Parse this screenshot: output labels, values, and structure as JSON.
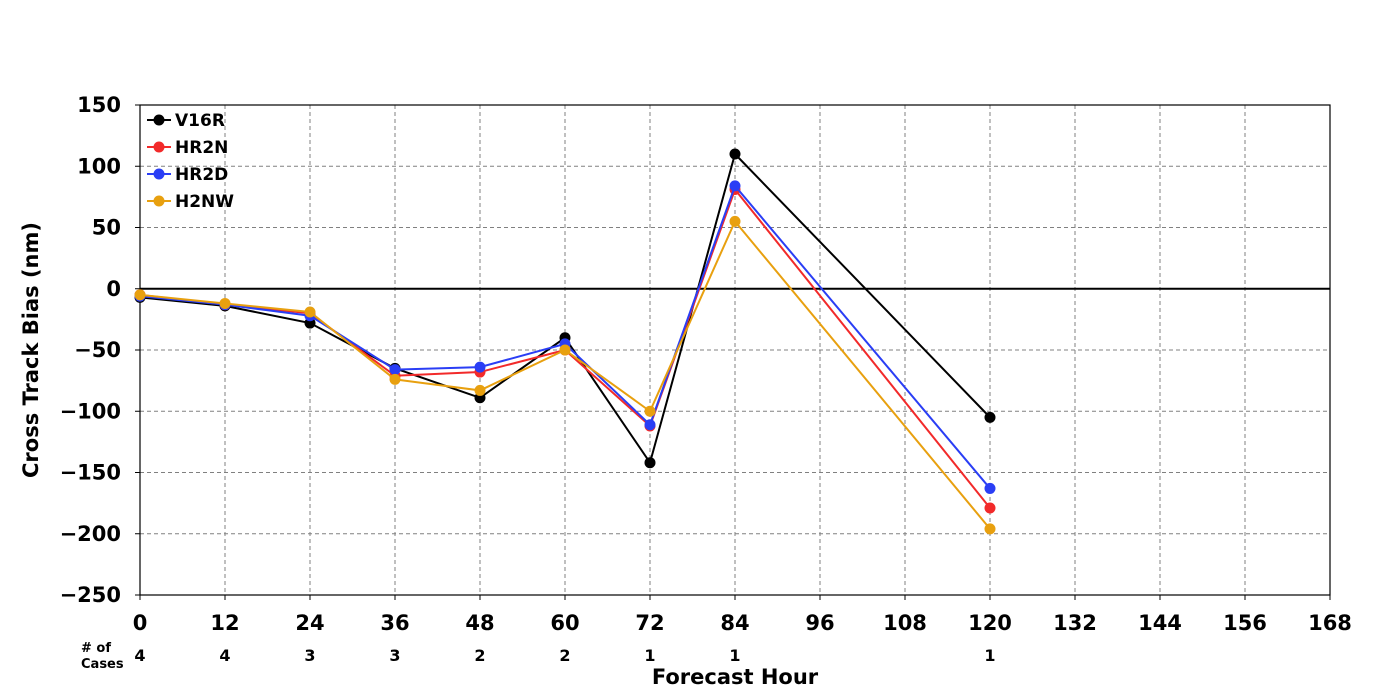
{
  "chart_data": {
    "type": "line",
    "xlabel": "Forecast Hour",
    "ylabel": "Cross Track Bias (nm)",
    "xlim": [
      0,
      168
    ],
    "ylim": [
      -250,
      150
    ],
    "x_ticks": [
      "0",
      "12",
      "24",
      "36",
      "48",
      "60",
      "72",
      "84",
      "96",
      "108",
      "120",
      "132",
      "144",
      "156",
      "168"
    ],
    "y_ticks": [
      "150",
      "100",
      "50",
      "0",
      "−50",
      "−100",
      "−150",
      "−200",
      "−250"
    ],
    "grid": true,
    "legend_position": "top-left",
    "zero_line": true,
    "series": [
      {
        "name": "V16R",
        "color": "#000000",
        "x": [
          0,
          12,
          24,
          36,
          48,
          60,
          72,
          84,
          120
        ],
        "y": [
          -7,
          -14,
          -28,
          -65,
          -89,
          -40,
          -142,
          110,
          -105
        ]
      },
      {
        "name": "HR2N",
        "color": "#f22a2a",
        "x": [
          0,
          12,
          24,
          36,
          48,
          60,
          72,
          84,
          120
        ],
        "y": [
          -5,
          -13,
          -20,
          -71,
          -68,
          -50,
          -112,
          81,
          -179
        ]
      },
      {
        "name": "HR2D",
        "color": "#2a3ef5",
        "x": [
          0,
          12,
          24,
          36,
          48,
          60,
          72,
          84,
          120
        ],
        "y": [
          -6,
          -13,
          -22,
          -66,
          -64,
          -45,
          -111,
          84,
          -163
        ]
      },
      {
        "name": "H2NW",
        "color": "#e8a00f",
        "x": [
          0,
          12,
          24,
          36,
          48,
          60,
          72,
          84,
          120
        ],
        "y": [
          -5,
          -12,
          -19,
          -74,
          -83,
          -50,
          -100,
          55,
          -196
        ]
      }
    ],
    "cases": {
      "header_line1": "# of",
      "header_line2": "Cases",
      "x": [
        0,
        12,
        24,
        36,
        48,
        60,
        72,
        84,
        120
      ],
      "counts": [
        "4",
        "4",
        "3",
        "3",
        "2",
        "2",
        "1",
        "1",
        "1"
      ]
    }
  }
}
